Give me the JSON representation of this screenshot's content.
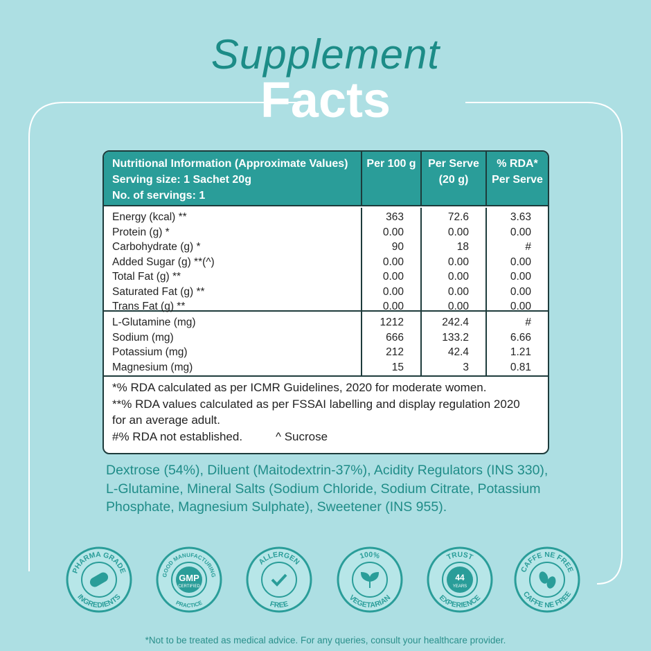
{
  "title": {
    "line1": "Supplement",
    "line2": "Facts"
  },
  "table": {
    "header": {
      "info": [
        "Nutritional Information (Approximate Values)",
        "Serving size: 1 Sachet 20g",
        "No. of servings: 1"
      ],
      "columns": [
        [
          "Per 100 g"
        ],
        [
          "Per Serve",
          "(20 g)"
        ],
        [
          "% RDA*",
          "Per Serve"
        ]
      ]
    },
    "groups": [
      [
        [
          "Energy (kcal) **",
          "363",
          "72.6",
          "3.63"
        ],
        [
          "Protein (g) *",
          "0.00",
          "0.00",
          "0.00"
        ],
        [
          "Carbohydrate (g) *",
          "90",
          "18",
          "#"
        ],
        [
          "Added Sugar (g) **(^)",
          "0.00",
          "0.00",
          "0.00"
        ],
        [
          "Total Fat (g) **",
          "0.00",
          "0.00",
          "0.00"
        ],
        [
          "Saturated Fat (g) **",
          "0.00",
          "0.00",
          "0.00"
        ],
        [
          "Trans Fat (g) **",
          "0.00",
          "0.00",
          "0.00"
        ]
      ],
      [
        [
          "L-Glutamine (mg)",
          "1212",
          "242.4",
          "#"
        ],
        [
          "Sodium (mg)",
          "666",
          "133.2",
          "6.66"
        ],
        [
          "Potassium (mg)",
          "212",
          "42.4",
          "1.21"
        ],
        [
          "Magnesium (mg)",
          "15",
          "3",
          "0.81"
        ]
      ]
    ],
    "notes": [
      "*% RDA calculated as per ICMR Guidelines, 2020  for moderate women.",
      "**% RDA values calculated as per FSSAI labelling and display regulation 2020",
      "for an average adult."
    ],
    "footnotes": [
      "#% RDA not established.",
      "^ Sucrose"
    ]
  },
  "ingredients": "Dextrose (54%), Diluent (Maitodextrin-37%), Acidity Regulators (INS 330), L-Glutamine, Mineral Salts (Sodium Chloride, Sodium Citrate, Potassium Phosphate, Magnesium Sulphate), Sweetener (INS 955).",
  "badges": [
    {
      "top": "PHARMA GRADE",
      "bottom": "INGREDIENTS"
    },
    {
      "top": "GOOD MANUFACTURING",
      "center": "GMP",
      "sub": "CERTIFIED",
      "bottom": "PRACTICE"
    },
    {
      "top": "ALLERGEN",
      "bottom": "FREE"
    },
    {
      "top": "100%",
      "bottom": "VEGETARIAN"
    },
    {
      "top": "TRUST",
      "center": "44",
      "sub": "YEARS",
      "bottom": "EXPERIENCE"
    },
    {
      "top": "CAFFE NE FREE",
      "bottom": "CAFFE NE FREE"
    }
  ],
  "disclaimer": "*Not to be treated as medical advice. For any queries, consult your healthcare provider."
}
